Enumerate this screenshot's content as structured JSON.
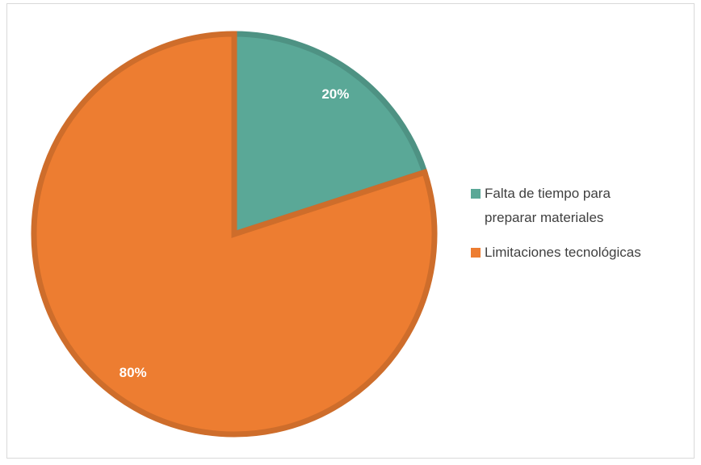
{
  "chart_data": {
    "type": "pie",
    "categories": [
      "Falta de tiempo para preparar materiales",
      "Limitaciones tecnológicas"
    ],
    "values": [
      20,
      80
    ],
    "value_labels": [
      "20%",
      "80%"
    ],
    "colors": [
      "#5aa897",
      "#ed7d31"
    ]
  }
}
